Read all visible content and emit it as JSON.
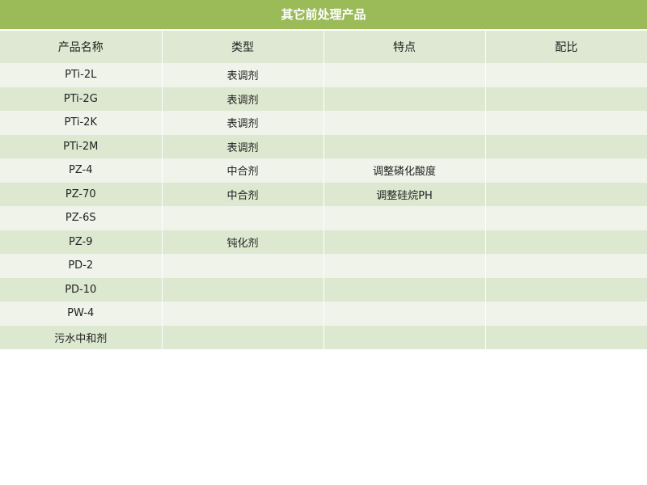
{
  "title": "其它前处理产品",
  "headers": [
    "产品名称",
    "类型",
    "特点",
    "配比"
  ],
  "rows": [
    [
      "PTi-2L",
      "表调剂",
      "",
      ""
    ],
    [
      "PTi-2G",
      "表调剂",
      "",
      ""
    ],
    [
      "PTi-2K",
      "表调剂",
      "",
      ""
    ],
    [
      "PTi-2M",
      "表调剂",
      "",
      ""
    ],
    [
      "PZ-4",
      "中合剂",
      "调整磷化酸度",
      ""
    ],
    [
      "PZ-70",
      "中合剂",
      "调整硅烷PH",
      ""
    ],
    [
      "PZ-6S",
      "",
      "",
      ""
    ],
    [
      "PZ-9",
      "钝化剂",
      "",
      ""
    ],
    [
      "PD-2",
      "",
      "",
      ""
    ],
    [
      "PD-10",
      "",
      "",
      ""
    ],
    [
      "PW-4",
      "",
      "",
      ""
    ],
    [
      "污水中和剂",
      "",
      "",
      ""
    ]
  ]
}
